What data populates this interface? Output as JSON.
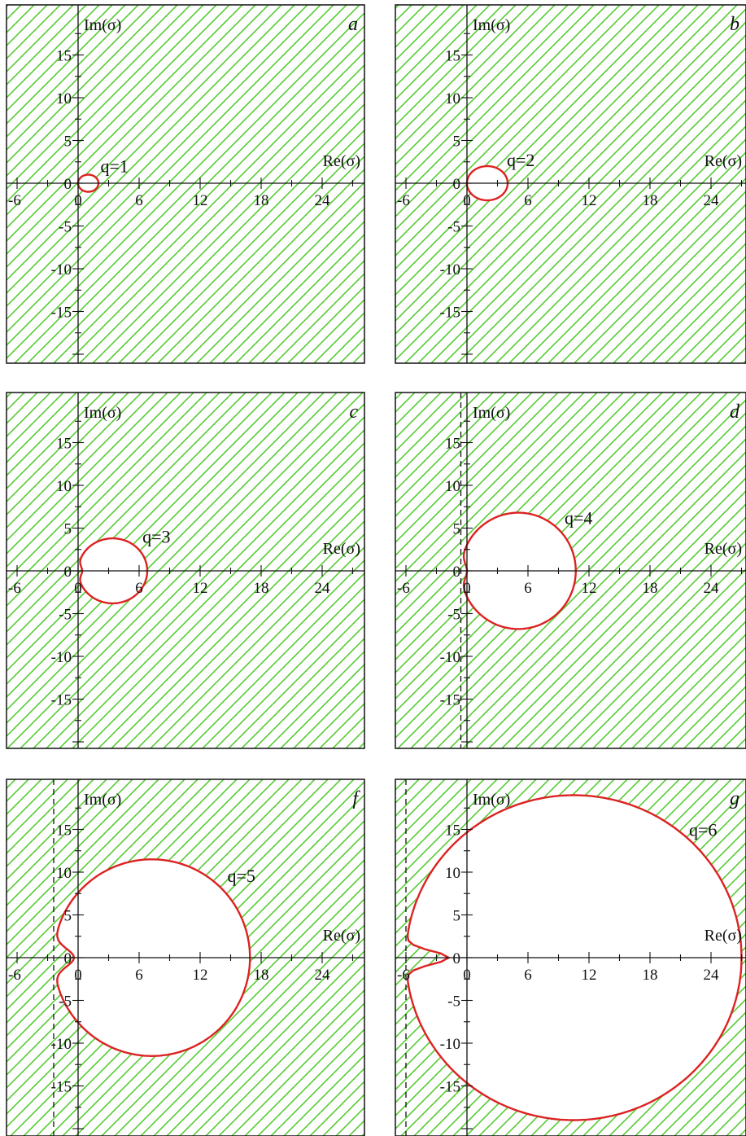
{
  "chart_data": [
    {
      "type": "line",
      "panel": "a",
      "q": 1,
      "q_label": "q=1",
      "axis_labels": {
        "im": "Im(σ)",
        "re": "Re(σ)"
      },
      "x_ticks": [
        "-6",
        "0",
        "6",
        "12",
        "18",
        "24"
      ],
      "y_ticks": [
        "15",
        "10",
        "5",
        "0",
        "-5",
        "-10",
        "-15"
      ],
      "xlim": [
        -6.5,
        27
      ],
      "ylim": [
        -20,
        19
      ],
      "hatched": "outside curve",
      "dashed_line_re": null,
      "curve": {
        "re_min": 0,
        "re_max": 2,
        "im_max": 1,
        "notch_depth": 0,
        "notch_halfwidth": 0
      }
    },
    {
      "type": "line",
      "panel": "b",
      "q": 2,
      "q_label": "q=2",
      "axis_labels": {
        "im": "Im(σ)",
        "re": "Re(σ)"
      },
      "x_ticks": [
        "-6",
        "0",
        "6",
        "12",
        "18",
        "24"
      ],
      "y_ticks": [
        "15",
        "10",
        "5",
        "0",
        "-5",
        "-10",
        "-15"
      ],
      "xlim": [
        -6.5,
        27
      ],
      "ylim": [
        -20,
        19
      ],
      "hatched": "outside curve",
      "dashed_line_re": null,
      "curve": {
        "re_min": 0,
        "re_max": 4,
        "im_max": 2,
        "notch_depth": 0,
        "notch_halfwidth": 0
      }
    },
    {
      "type": "line",
      "panel": "c",
      "q": 3,
      "q_label": "q=3",
      "axis_labels": {
        "im": "Im(σ)",
        "re": "Re(σ)"
      },
      "x_ticks": [
        "-6",
        "0",
        "6",
        "12",
        "18",
        "24"
      ],
      "y_ticks": [
        "15",
        "10",
        "5",
        "0",
        "-5",
        "-10",
        "-15"
      ],
      "xlim": [
        -6.5,
        27
      ],
      "ylim": [
        -20,
        19
      ],
      "hatched": "outside curve",
      "dashed_line_re": null,
      "curve": {
        "re_min": 0,
        "re_max": 6.8,
        "im_max": 3.8,
        "notch_depth": 0.4,
        "notch_halfwidth": 0.8
      }
    },
    {
      "type": "line",
      "panel": "d",
      "q": 4,
      "q_label": "q=4",
      "axis_labels": {
        "im": "Im(σ)",
        "re": "Re(σ)"
      },
      "x_ticks": [
        "-6",
        "0",
        "6",
        "12",
        "18",
        "24"
      ],
      "y_ticks": [
        "15",
        "10",
        "5",
        "0",
        "-5",
        "-10",
        "-15"
      ],
      "xlim": [
        -6.5,
        27
      ],
      "ylim": [
        -20,
        19
      ],
      "hatched": "outside curve",
      "dashed_line_re": -0.6,
      "curve": {
        "re_min": -0.6,
        "re_max": 10.7,
        "im_max": 6.8,
        "notch_depth": 0.6,
        "notch_halfwidth": 1.3
      }
    },
    {
      "type": "line",
      "panel": "f",
      "q": 5,
      "q_label": "q=5",
      "axis_labels": {
        "im": "Im(σ)",
        "re": "Re(σ)"
      },
      "x_ticks": [
        "-6",
        "0",
        "6",
        "12",
        "18",
        "24"
      ],
      "y_ticks": [
        "15",
        "10",
        "5",
        "0",
        "-5",
        "-10",
        "-15"
      ],
      "xlim": [
        -6.5,
        27
      ],
      "ylim": [
        -20,
        19
      ],
      "hatched": "outside curve",
      "dashed_line_re": -2.4,
      "curve": {
        "re_min": -2.4,
        "re_max": 16.9,
        "im_max": 11.5,
        "notch_depth": 2.0,
        "notch_halfwidth": 1.5
      }
    },
    {
      "type": "line",
      "panel": "g",
      "q": 6,
      "q_label": "q=6",
      "axis_labels": {
        "im": "Im(σ)",
        "re": "Re(σ)"
      },
      "x_ticks": [
        "-6",
        "0",
        "6",
        "12",
        "18",
        "24"
      ],
      "y_ticks": [
        "15",
        "10",
        "5",
        "0",
        "-5",
        "-10",
        "-15"
      ],
      "xlim": [
        -6.5,
        27
      ],
      "ylim": [
        -20,
        19
      ],
      "hatched": "outside curve",
      "dashed_line_re": -6.0,
      "curve": {
        "re_min": -6.0,
        "re_max": 27.0,
        "im_max": 19.0,
        "notch_depth": 4.2,
        "notch_halfwidth": 1.1
      }
    }
  ],
  "colors": {
    "hatch": "#55cc33",
    "curve": "#dd2222",
    "axis": "#111111",
    "frame": "#111111"
  }
}
